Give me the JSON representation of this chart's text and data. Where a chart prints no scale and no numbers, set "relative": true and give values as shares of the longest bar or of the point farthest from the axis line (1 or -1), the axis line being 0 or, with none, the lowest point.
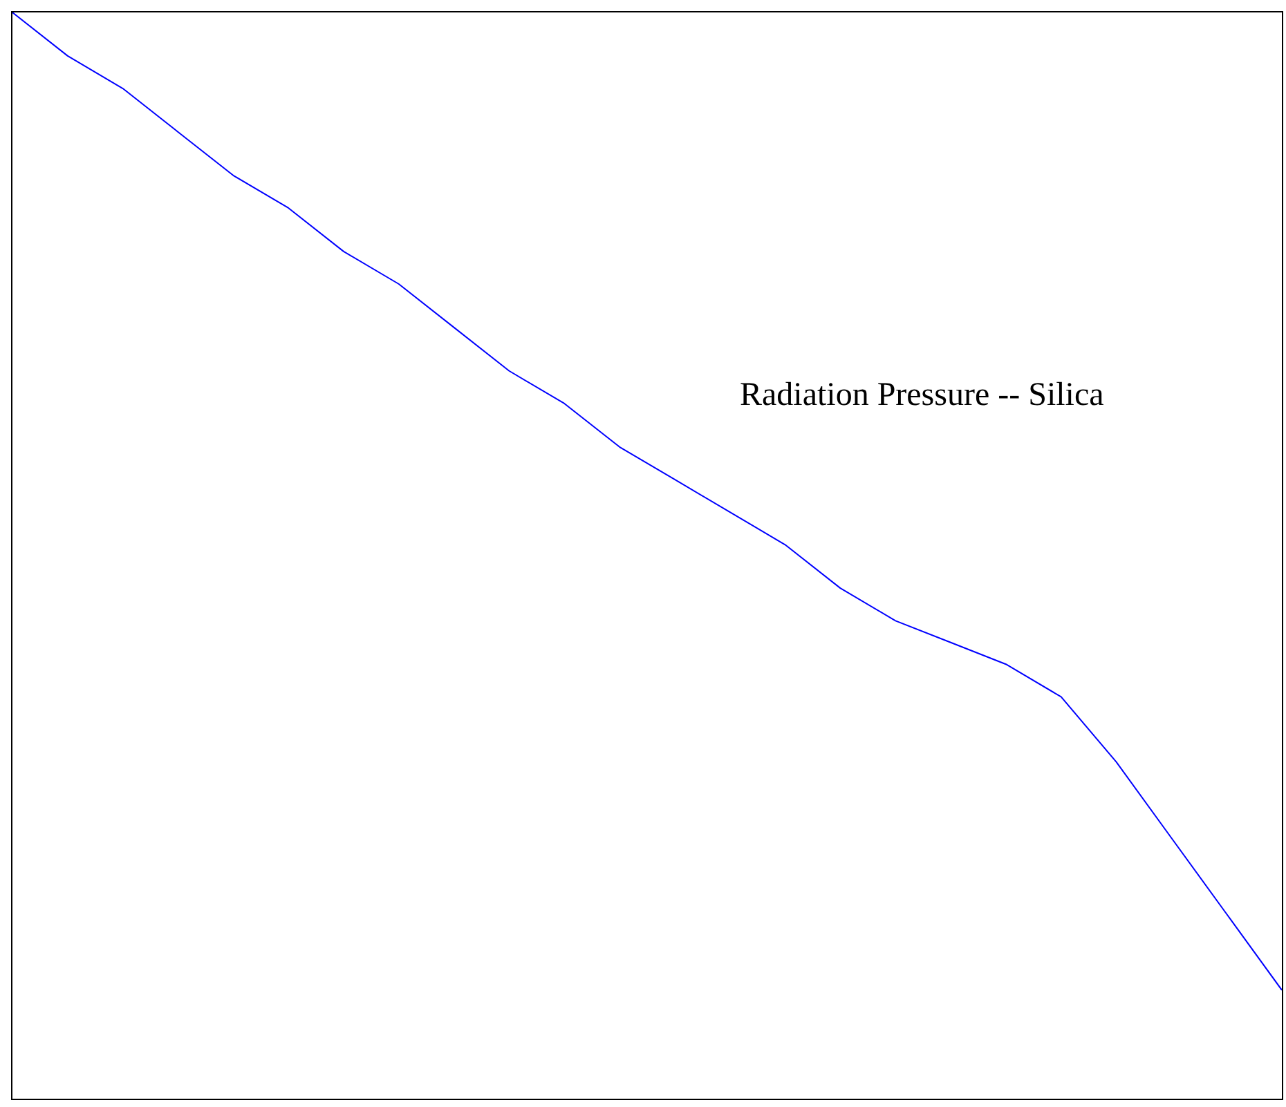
{
  "chart_data": {
    "type": "line",
    "relative": true,
    "tick_labels": false,
    "grid": false,
    "legend": false,
    "marker": "none",
    "line_style": "solid",
    "annotations": [
      "Radiation Pressure -- Silica"
    ],
    "categories": [
      null,
      null,
      null,
      null,
      null,
      null,
      null,
      null,
      null,
      null,
      null,
      null,
      null,
      null,
      null,
      null,
      null,
      null,
      null,
      null,
      null,
      null,
      null,
      null
    ],
    "series": [
      {
        "color": "#0000ff",
        "values": [
          1,
          0.96,
          0.93,
          0.89,
          0.85,
          0.82,
          0.78,
          0.75,
          0.71,
          0.67,
          0.64,
          0.6,
          0.57,
          0.54,
          0.51,
          0.47,
          0.44,
          0.42,
          0.4,
          0.37,
          0.31,
          0.24,
          0.17,
          0.1
        ]
      }
    ]
  }
}
